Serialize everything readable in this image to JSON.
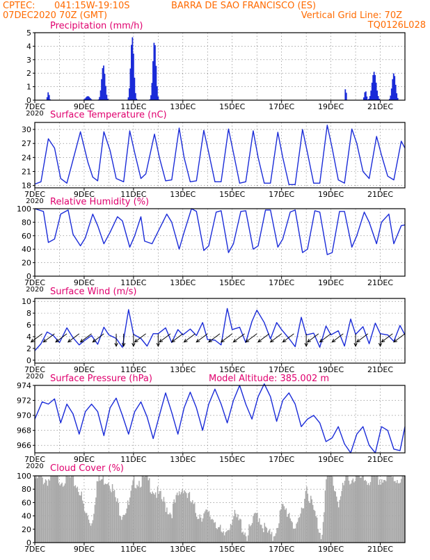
{
  "header": {
    "source": "CPTEC:",
    "location_coords": "041:15W-19:10S",
    "station": "BARRA DE SAO FRANCISCO (ES)",
    "run": "07DEC2020 70Z (GMT)",
    "grid_note": "Vertical Grid Line: 70Z",
    "code": "TQ0126L028"
  },
  "colors": {
    "header": "#ff6a00",
    "title": "#e0006e",
    "series": "#1a2bd8",
    "cloud": "#a8a8a8",
    "grid": "#777777"
  },
  "x_axis": {
    "range_days": [
      7,
      22
    ],
    "ticks": [
      {
        "day": 7,
        "label": "7DEC"
      },
      {
        "day": 9,
        "label": "9DEC"
      },
      {
        "day": 11,
        "label": "11DEC"
      },
      {
        "day": 13,
        "label": "13DEC"
      },
      {
        "day": 15,
        "label": "15DEC"
      },
      {
        "day": 17,
        "label": "17DEC"
      },
      {
        "day": 19,
        "label": "19DEC"
      },
      {
        "day": 21,
        "label": "21DEC"
      }
    ],
    "clipped_label": "2020"
  },
  "chart_data": [
    {
      "type": "bar",
      "id": "precip",
      "title": "Precipitation (mm/h)",
      "ylim": [
        0,
        5
      ],
      "yticks": [
        0,
        1,
        2,
        3,
        4,
        5
      ],
      "bursts": [
        {
          "center": 7.55,
          "width": 0.05,
          "peak": 0.6
        },
        {
          "center": 9.15,
          "width": 0.12,
          "peak": 0.3
        },
        {
          "center": 9.78,
          "width": 0.1,
          "peak": 2.6
        },
        {
          "center": 10.95,
          "width": 0.09,
          "peak": 4.7
        },
        {
          "center": 11.85,
          "width": 0.09,
          "peak": 4.4
        },
        {
          "center": 19.6,
          "width": 0.03,
          "peak": 1.1
        },
        {
          "center": 20.4,
          "width": 0.06,
          "peak": 0.7
        },
        {
          "center": 20.75,
          "width": 0.12,
          "peak": 2.1
        },
        {
          "center": 21.55,
          "width": 0.1,
          "peak": 2.0
        }
      ]
    },
    {
      "type": "line",
      "id": "temp",
      "title": "Surface Temperature (nC)",
      "ylim": [
        17.5,
        31.5
      ],
      "yticks": [
        18,
        21,
        24,
        27,
        30
      ],
      "x": [
        7.0,
        7.25,
        7.55,
        7.8,
        8.05,
        8.3,
        8.55,
        8.85,
        9.15,
        9.35,
        9.55,
        9.8,
        10.05,
        10.3,
        10.6,
        10.85,
        11.05,
        11.3,
        11.5,
        11.85,
        12.05,
        12.3,
        12.55,
        12.85,
        13.05,
        13.3,
        13.55,
        13.85,
        14.05,
        14.3,
        14.55,
        14.85,
        15.05,
        15.3,
        15.55,
        15.85,
        16.05,
        16.3,
        16.55,
        16.85,
        17.05,
        17.3,
        17.55,
        17.85,
        18.05,
        18.3,
        18.55,
        18.85,
        19.05,
        19.3,
        19.55,
        19.85,
        20.05,
        20.3,
        20.55,
        20.85,
        21.05,
        21.3,
        21.55,
        21.85,
        22.0
      ],
      "y": [
        18.3,
        18.8,
        28.0,
        26.0,
        19.5,
        18.5,
        23.5,
        29.5,
        23.0,
        19.8,
        19.0,
        29.5,
        25.5,
        19.5,
        18.8,
        29.7,
        25.0,
        19.5,
        20.5,
        29.0,
        24.0,
        19.0,
        19.2,
        30.3,
        24.0,
        18.8,
        19.0,
        29.8,
        25.0,
        18.8,
        18.8,
        30.1,
        25.0,
        18.5,
        18.8,
        29.7,
        24.0,
        18.5,
        18.5,
        29.4,
        24.0,
        18.2,
        18.2,
        30.0,
        25.0,
        18.5,
        18.5,
        30.9,
        26.0,
        19.2,
        18.5,
        30.1,
        27.0,
        21.0,
        19.5,
        28.5,
        24.5,
        20.0,
        19.2,
        27.5,
        26.0
      ]
    },
    {
      "type": "line",
      "id": "rh",
      "title": "Relative Humidity (%)",
      "ylim": [
        0,
        100
      ],
      "yticks": [
        0,
        20,
        40,
        60,
        80,
        100
      ],
      "x": [
        7.0,
        7.35,
        7.55,
        7.8,
        8.05,
        8.35,
        8.55,
        8.85,
        9.05,
        9.35,
        9.55,
        9.8,
        10.05,
        10.35,
        10.55,
        10.85,
        11.05,
        11.3,
        11.45,
        11.75,
        12.05,
        12.35,
        12.55,
        12.85,
        13.05,
        13.35,
        13.55,
        13.85,
        14.05,
        14.35,
        14.55,
        14.85,
        15.05,
        15.35,
        15.55,
        15.85,
        16.05,
        16.35,
        16.55,
        16.85,
        17.05,
        17.35,
        17.55,
        17.85,
        18.05,
        18.35,
        18.55,
        18.85,
        19.05,
        19.35,
        19.55,
        19.85,
        20.05,
        20.35,
        20.55,
        20.85,
        21.05,
        21.35,
        21.55,
        21.85,
        22.0
      ],
      "y": [
        100,
        96,
        50,
        55,
        92,
        98,
        62,
        45,
        57,
        92,
        75,
        48,
        65,
        88,
        82,
        43,
        60,
        88,
        52,
        48,
        70,
        92,
        80,
        40,
        65,
        100,
        96,
        38,
        45,
        95,
        97,
        35,
        48,
        96,
        97,
        40,
        45,
        98,
        98,
        43,
        55,
        95,
        98,
        35,
        40,
        97,
        95,
        32,
        35,
        96,
        96,
        43,
        60,
        95,
        80,
        48,
        80,
        92,
        48,
        75,
        76
      ]
    },
    {
      "type": "line",
      "id": "wind",
      "title": "Surface Wind (m/s)",
      "ylim": [
        -0.5,
        10.5
      ],
      "yticks": [
        0,
        2,
        4,
        6,
        8,
        10
      ],
      "x": [
        7.0,
        7.25,
        7.5,
        7.75,
        8.0,
        8.3,
        8.55,
        8.8,
        9.0,
        9.3,
        9.55,
        9.8,
        10.0,
        10.3,
        10.55,
        10.8,
        11.0,
        11.3,
        11.55,
        11.8,
        12.0,
        12.3,
        12.55,
        12.8,
        13.0,
        13.3,
        13.55,
        13.8,
        14.0,
        14.3,
        14.55,
        14.8,
        15.0,
        15.3,
        15.55,
        15.8,
        16.0,
        16.3,
        16.55,
        16.8,
        17.0,
        17.3,
        17.55,
        17.8,
        18.0,
        18.3,
        18.55,
        18.8,
        19.0,
        19.3,
        19.55,
        19.8,
        20.0,
        20.3,
        20.55,
        20.8,
        21.0,
        21.3,
        21.55,
        21.8,
        22.0
      ],
      "y": [
        1.6,
        2.8,
        4.8,
        4.2,
        3.0,
        5.5,
        3.8,
        2.6,
        3.3,
        4.2,
        2.7,
        5.6,
        4.3,
        3.7,
        2.2,
        8.6,
        4.4,
        3.7,
        2.4,
        4.5,
        4.5,
        5.5,
        3.0,
        5.2,
        4.3,
        5.3,
        4.2,
        6.4,
        3.5,
        3.4,
        2.6,
        8.8,
        5.2,
        5.6,
        3.0,
        6.6,
        8.5,
        6.4,
        3.6,
        6.4,
        5.2,
        3.7,
        2.3,
        7.3,
        4.3,
        4.6,
        2.2,
        5.8,
        4.3,
        5.0,
        2.4,
        7.0,
        4.4,
        5.7,
        2.8,
        6.3,
        4.5,
        4.3,
        3.2,
        5.9,
        4.3
      ]
    },
    {
      "type": "line",
      "id": "press",
      "title": "Surface Pressure (hPa)",
      "ylim": [
        965.0,
        974.0
      ],
      "yticks": [
        966,
        968,
        970,
        972,
        974
      ],
      "x": [
        7.0,
        7.3,
        7.55,
        7.8,
        8.05,
        8.3,
        8.55,
        8.8,
        9.05,
        9.3,
        9.55,
        9.8,
        10.05,
        10.3,
        10.55,
        10.8,
        11.05,
        11.3,
        11.55,
        11.8,
        12.05,
        12.3,
        12.55,
        12.8,
        13.05,
        13.3,
        13.55,
        13.8,
        14.05,
        14.3,
        14.55,
        14.8,
        15.05,
        15.3,
        15.55,
        15.8,
        16.05,
        16.3,
        16.55,
        16.8,
        17.05,
        17.3,
        17.55,
        17.8,
        18.05,
        18.3,
        18.55,
        18.8,
        19.05,
        19.3,
        19.55,
        19.8,
        20.05,
        20.3,
        20.55,
        20.8,
        21.05,
        21.3,
        21.55,
        21.8,
        22.0
      ],
      "y": [
        969.5,
        971.8,
        971.5,
        972.2,
        969.0,
        971.5,
        970.2,
        967.5,
        970.5,
        971.5,
        970.5,
        967.3,
        971.0,
        972.3,
        970.0,
        967.5,
        970.5,
        971.8,
        969.8,
        966.9,
        970.0,
        973.0,
        970.4,
        967.5,
        971.0,
        973.1,
        971.0,
        968.0,
        971.5,
        973.5,
        971.5,
        969.0,
        972.0,
        974.0,
        971.5,
        969.5,
        972.5,
        974.2,
        972.5,
        969.2,
        972.0,
        973.0,
        971.5,
        968.5,
        969.5,
        970.0,
        969.0,
        966.5,
        967.0,
        968.5,
        966.2,
        965.0,
        967.5,
        968.5,
        966.0,
        965.0,
        968.5,
        968.0,
        965.5,
        965.3,
        968.5
      ]
    },
    {
      "type": "area",
      "id": "cloud",
      "title": "Cloud Cover (%)",
      "ylim": [
        0,
        100
      ],
      "yticks": [
        0,
        20,
        40,
        60,
        80,
        100
      ],
      "x": [
        7.0,
        7.5,
        8.0,
        8.5,
        8.8,
        9.0,
        9.3,
        9.5,
        9.8,
        10.0,
        10.3,
        10.5,
        10.8,
        11.0,
        11.5,
        12.0,
        12.5,
        13.0,
        13.5,
        14.0,
        14.3,
        14.6,
        15.0,
        15.3,
        15.6,
        16.0,
        16.3,
        16.6,
        17.0,
        17.3,
        17.6,
        18.0,
        18.3,
        18.6,
        18.8,
        19.0,
        19.3,
        19.6,
        20.0,
        20.5,
        21.0,
        21.5,
        22.0
      ],
      "y": [
        96,
        95,
        96,
        95,
        80,
        45,
        30,
        90,
        96,
        95,
        60,
        45,
        55,
        92,
        95,
        70,
        45,
        85,
        45,
        40,
        35,
        5,
        40,
        30,
        10,
        45,
        20,
        5,
        50,
        45,
        15,
        85,
        45,
        10,
        95,
        100,
        60,
        96,
        97,
        94,
        95,
        96,
        97
      ]
    }
  ],
  "model_altitude_label": "Model Altitude: 385.002 m",
  "wind_arrows": {
    "times": [
      7.3,
      7.8,
      8.3,
      8.8,
      9.3,
      9.8,
      10.3,
      10.6,
      11.0,
      11.5,
      12.0,
      12.5,
      13.0,
      13.5,
      14.0,
      14.5,
      15.0,
      15.5,
      16.0,
      16.5,
      17.0,
      17.5,
      18.0,
      18.5,
      19.0,
      19.5,
      20.0,
      20.5,
      21.0,
      21.5,
      22.0
    ],
    "dirs": [
      "SW",
      "SW",
      "SW",
      "SW",
      "SW",
      "SW",
      "S",
      "S",
      "S",
      "SW",
      "S",
      "SW",
      "SW",
      "SW",
      "SW",
      "SW",
      "SW",
      "SW",
      "SW",
      "SW",
      "SW",
      "SW",
      "S",
      "SW",
      "SW",
      "SW",
      "S",
      "SW",
      "S",
      "SW",
      "SW"
    ]
  }
}
